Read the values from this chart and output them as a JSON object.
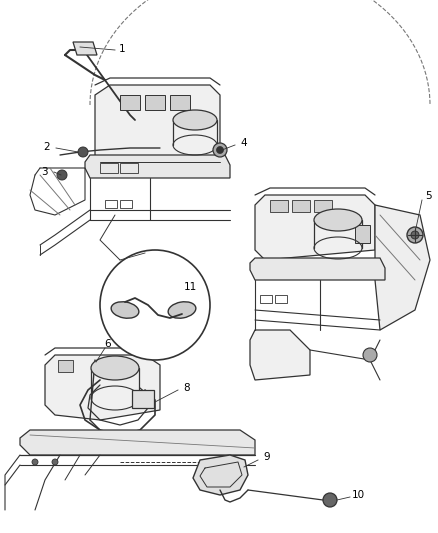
{
  "bg_color": "#ffffff",
  "line_color": "#aaaaaa",
  "dark_line": "#333333",
  "mid_line": "#777777",
  "label_color": "#000000",
  "number_fontsize": 7.5,
  "fig_width": 4.39,
  "fig_height": 5.33,
  "dpi": 100
}
